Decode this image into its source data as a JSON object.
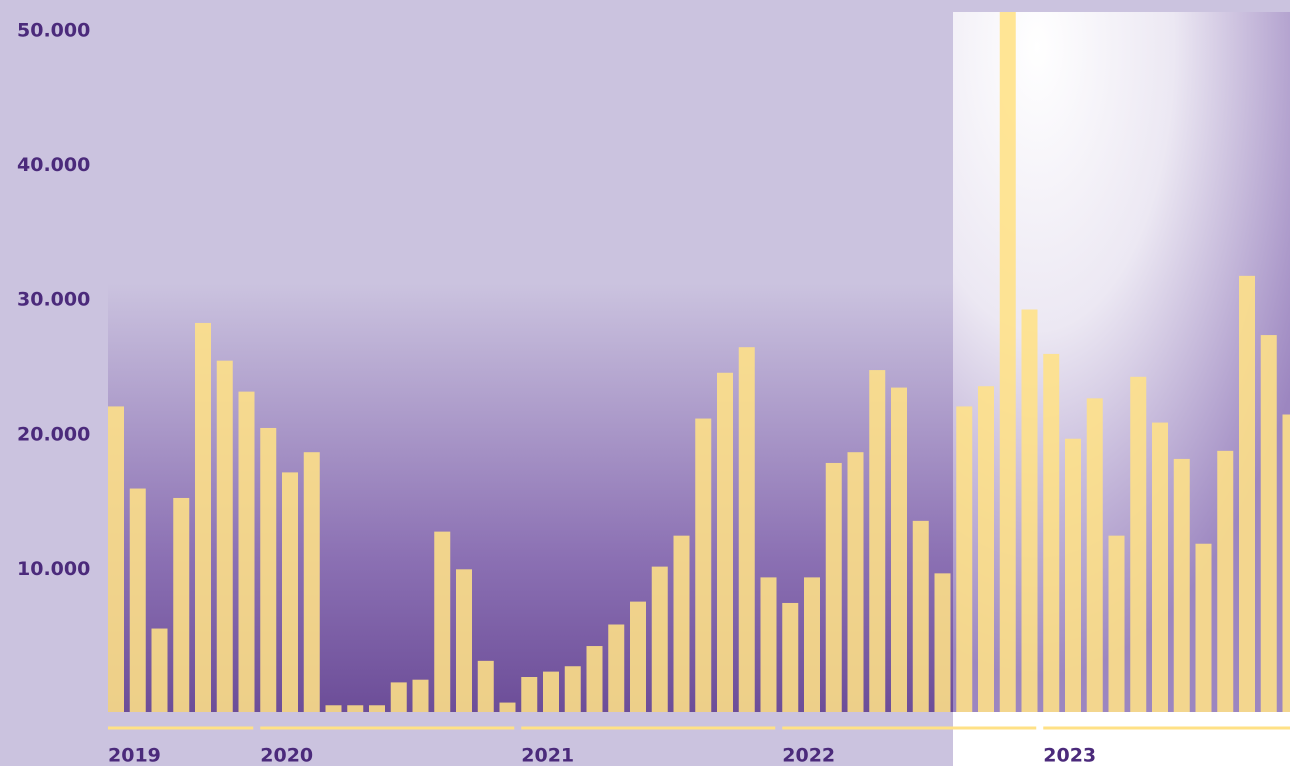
{
  "chart_data": {
    "type": "bar",
    "categories": [
      "2019",
      null,
      null,
      null,
      null,
      null,
      null,
      "2020",
      null,
      null,
      null,
      null,
      null,
      null,
      null,
      null,
      null,
      null,
      null,
      "2021",
      null,
      null,
      null,
      null,
      null,
      null,
      null,
      null,
      null,
      null,
      null,
      "2022",
      null,
      null,
      null,
      null,
      null,
      null,
      null,
      null,
      null,
      null,
      null,
      "2023",
      null,
      null,
      null,
      null,
      null,
      null,
      null,
      null,
      null,
      null,
      null
    ],
    "values": [
      22700,
      16600,
      6200,
      15900,
      28900,
      26100,
      23800,
      21100,
      17800,
      19300,
      500,
      500,
      500,
      2200,
      2400,
      13400,
      10600,
      3800,
      700,
      2600,
      3000,
      3400,
      4900,
      6500,
      8200,
      10800,
      13100,
      21800,
      25200,
      27100,
      10000,
      8100,
      10000,
      18500,
      19300,
      25400,
      24100,
      14200,
      10300,
      22700,
      24200,
      52000,
      29900,
      26600,
      20300,
      23300,
      13100,
      24900,
      21500,
      18800,
      12500,
      19400,
      32400,
      28000,
      22100
    ],
    "color": "#ffe186",
    "ylim": [
      0,
      52000
    ],
    "yticks": [
      {
        "value": 10000,
        "label": "10.000"
      },
      {
        "value": 20000,
        "label": "20.000"
      },
      {
        "value": 30000,
        "label": "30.000"
      },
      {
        "value": 40000,
        "label": "40.000"
      },
      {
        "value": 50000,
        "label": "50.000"
      }
    ]
  }
}
